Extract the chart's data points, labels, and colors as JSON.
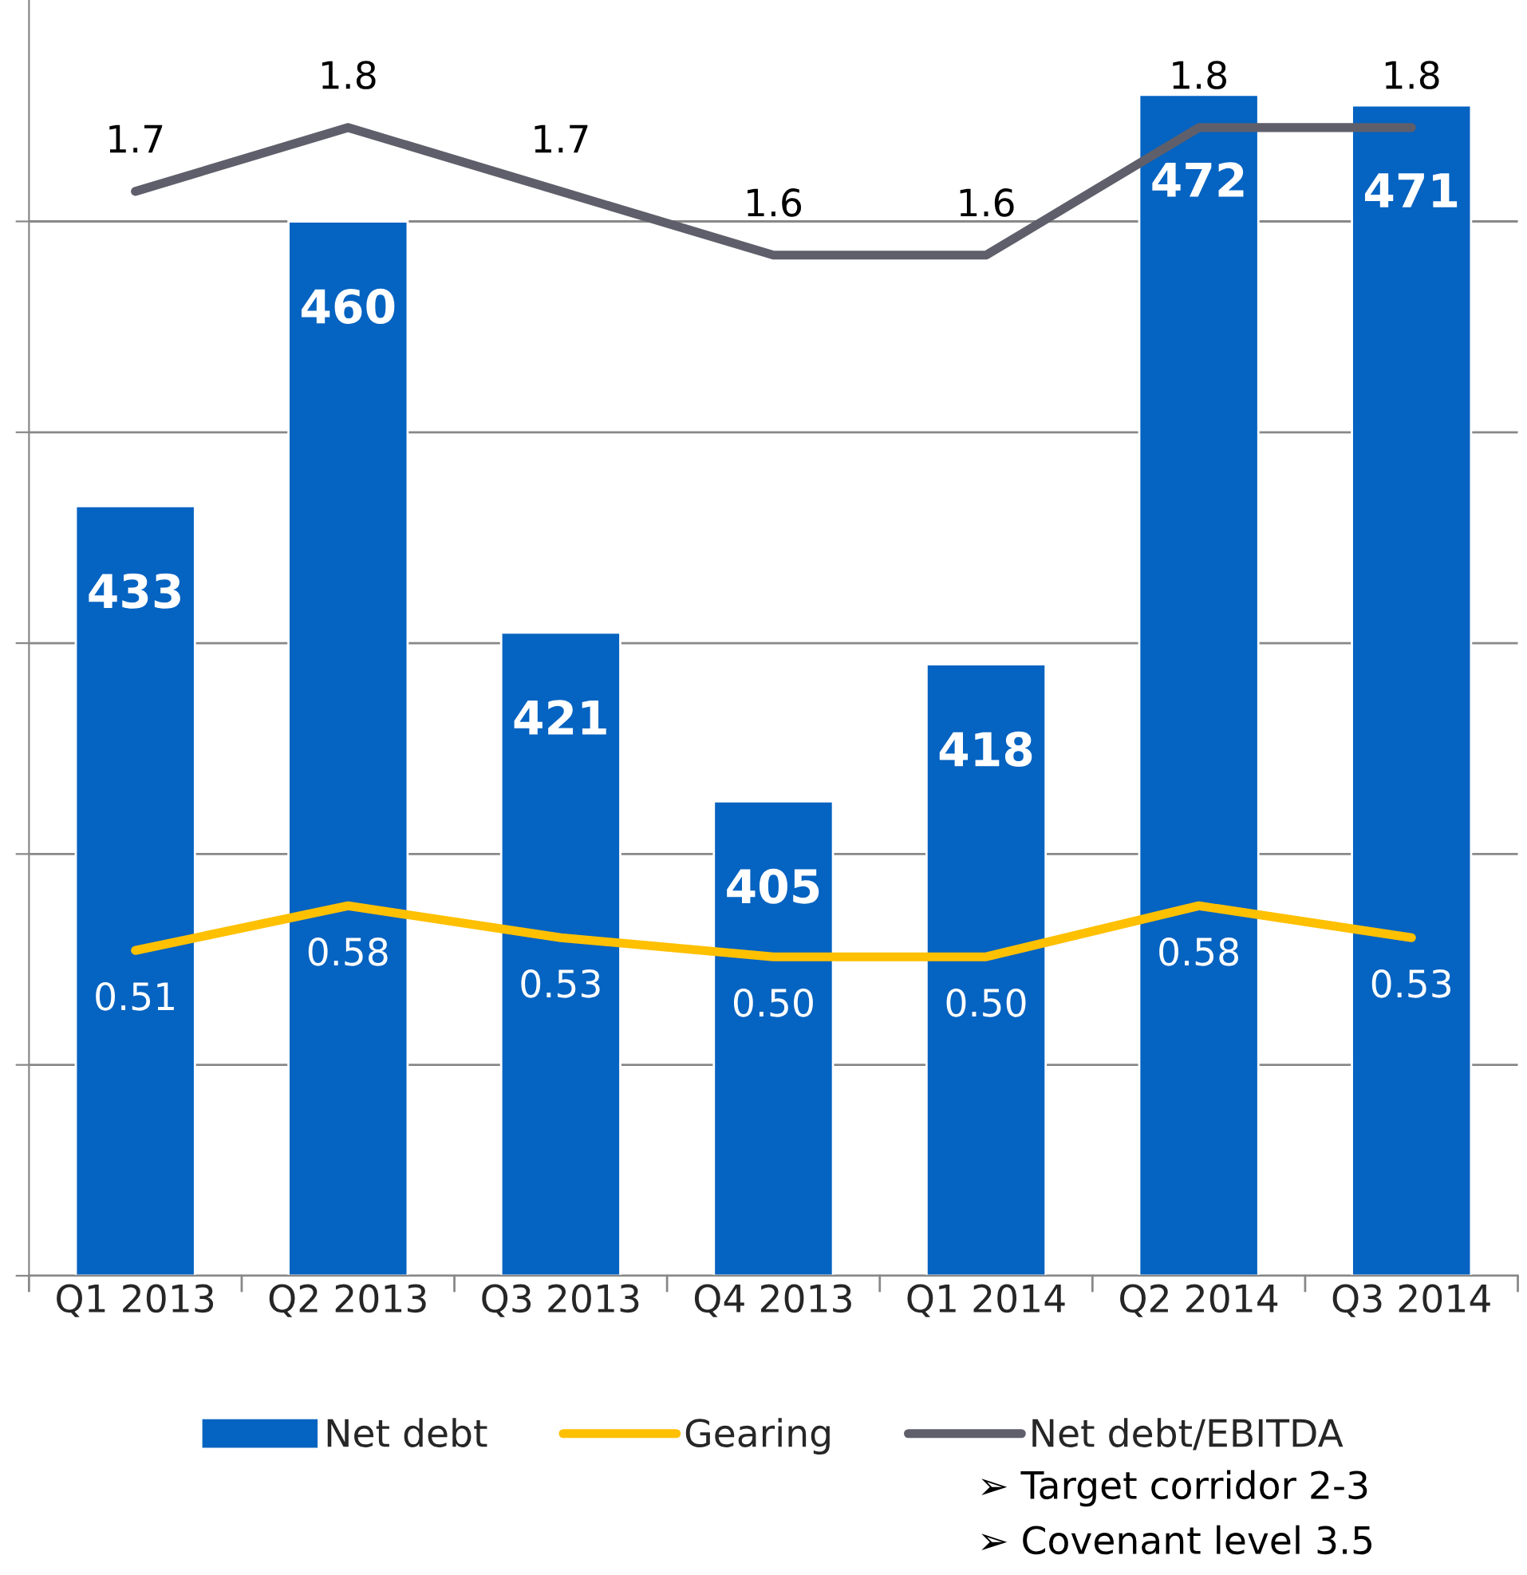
{
  "chart_data": {
    "type": "bar",
    "categories": [
      "Q1 2013",
      "Q2 2013",
      "Q3 2013",
      "Q4 2013",
      "Q1 2014",
      "Q2 2014",
      "Q3 2014"
    ],
    "series": [
      {
        "name": "Net debt",
        "color": "#0563c1",
        "values": [
          433,
          460,
          421,
          405,
          418,
          472,
          471
        ],
        "value_labels": [
          "433",
          "460",
          "421",
          "405",
          "418",
          "472",
          "471"
        ]
      },
      {
        "name": "Gearing",
        "type": "line",
        "axis": "y2",
        "color": "#ffc000",
        "values": [
          0.51,
          0.58,
          0.53,
          0.5,
          0.5,
          0.58,
          0.53
        ],
        "value_labels": [
          "0.51",
          "0.58",
          "0.53",
          "0.50",
          "0.50",
          "0.58",
          "0.53"
        ]
      },
      {
        "name": "Net debt/EBITDA",
        "type": "line",
        "axis": "y2",
        "color": "#5f5f6b",
        "values": [
          1.7,
          1.8,
          1.7,
          1.6,
          1.6,
          1.8,
          1.8
        ],
        "value_labels": [
          "1.7",
          "1.8",
          "1.7",
          "1.6",
          "1.6",
          "1.8",
          "1.8"
        ]
      }
    ],
    "ylim": [
      360,
      481
    ],
    "yticks": [
      {
        "value": 360,
        "label": null
      },
      {
        "value": 380,
        "label": null
      },
      {
        "value": 400,
        "label": null
      },
      {
        "value": 420,
        "label": null
      },
      {
        "value": 440,
        "label": null
      },
      {
        "value": 460,
        "label": null
      }
    ],
    "y2lim": [
      0,
      2.0
    ],
    "tick_labels": "x",
    "grid": "y",
    "legend": "bottom",
    "marker": "none",
    "line_style": "solid",
    "annotations": [
      "➢ Target corridor 2-3",
      "➢ Covenant level 3.5"
    ]
  }
}
